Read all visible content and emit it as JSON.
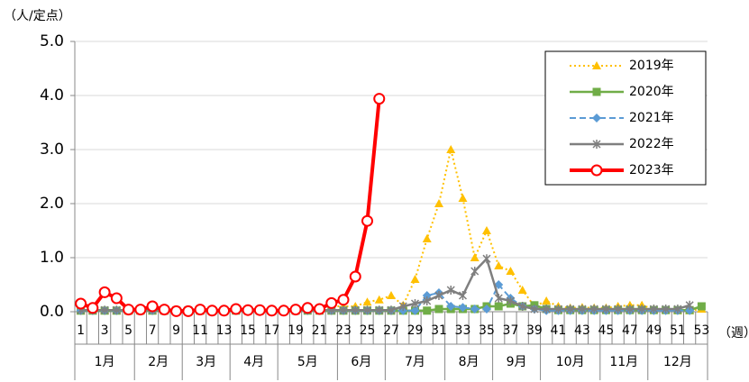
{
  "chart_data": {
    "type": "line",
    "y_unit_label": "（人/定点）",
    "x_unit_label": "（週）",
    "categories": [
      "1",
      null,
      "3",
      null,
      "5",
      null,
      "7",
      null,
      "9",
      null,
      "11",
      null,
      "13",
      null,
      "15",
      null,
      "17",
      null,
      "19",
      null,
      "21",
      null,
      "23",
      null,
      "25",
      null,
      "27",
      null,
      "29",
      null,
      "31",
      null,
      "33",
      null,
      "35",
      null,
      "37",
      null,
      "39",
      null,
      "41",
      null,
      "43",
      null,
      "45",
      null,
      "47",
      null,
      "49",
      null,
      "51",
      null,
      "53"
    ],
    "month_groups": [
      {
        "label": "1月",
        "weeks": 5
      },
      {
        "label": "2月",
        "weeks": 4
      },
      {
        "label": "3月",
        "weeks": 4
      },
      {
        "label": "4月",
        "weeks": 4
      },
      {
        "label": "5月",
        "weeks": 5
      },
      {
        "label": "6月",
        "weeks": 4
      },
      {
        "label": "7月",
        "weeks": 5
      },
      {
        "label": "8月",
        "weeks": 4
      },
      {
        "label": "9月",
        "weeks": 4
      },
      {
        "label": "10月",
        "weeks": 5
      },
      {
        "label": "11月",
        "weeks": 4
      },
      {
        "label": "12月",
        "weeks": 5
      }
    ],
    "ylim": [
      0,
      5
    ],
    "yticks": [
      {
        "value": 0,
        "label": "0.0"
      },
      {
        "value": 1,
        "label": "1.0"
      },
      {
        "value": 2,
        "label": "2.0"
      },
      {
        "value": 3,
        "label": "3.0"
      },
      {
        "value": 4,
        "label": "4.0"
      },
      {
        "value": 5,
        "label": "5.0"
      }
    ],
    "grid": true,
    "legend": "upper right",
    "series": [
      {
        "name": "2019年",
        "color": "#ffc000",
        "marker": "triangle",
        "line_style": "dotted",
        "values": [
          0.02,
          0.02,
          0.02,
          0.02,
          0.02,
          0.02,
          0.02,
          0.02,
          0.02,
          0.02,
          0.02,
          0.02,
          0.03,
          0.03,
          0.03,
          0.03,
          0.03,
          0.05,
          0.05,
          0.07,
          0.08,
          0.1,
          0.1,
          0.1,
          0.18,
          0.22,
          0.3,
          0.12,
          0.6,
          1.35,
          2.0,
          3.0,
          2.1,
          1.0,
          1.5,
          0.85,
          0.75,
          0.4,
          0.1,
          0.2,
          0.1,
          0.07,
          0.08,
          0.07,
          0.07,
          0.1,
          0.12,
          0.12,
          0.05,
          0.03,
          0.02,
          0.02,
          0.05
        ]
      },
      {
        "name": "2020年",
        "color": "#70ad47",
        "marker": "square",
        "line_style": "solid",
        "values": [
          0.02,
          0.02,
          0.02,
          0.02,
          0.02,
          0.02,
          0.02,
          0.02,
          0.02,
          0.02,
          0.02,
          0.02,
          0.02,
          0.02,
          0.02,
          0.02,
          0.02,
          0.02,
          0.02,
          0.02,
          0.02,
          0.02,
          0.02,
          0.02,
          0.02,
          0.02,
          0.02,
          0.02,
          0.02,
          0.02,
          0.05,
          0.05,
          0.05,
          0.05,
          0.1,
          0.1,
          0.15,
          0.1,
          0.12,
          0.05,
          0.03,
          0.03,
          0.03,
          0.03,
          0.03,
          0.03,
          0.03,
          0.03,
          0.03,
          0.03,
          0.03,
          0.03,
          0.1
        ]
      },
      {
        "name": "2021年",
        "color": "#5b9bd5",
        "marker": "diamond",
        "line_style": "dashed",
        "values": [
          0.02,
          0.02,
          0.02,
          0.02,
          0.02,
          0.02,
          0.02,
          0.02,
          0.02,
          0.02,
          0.02,
          0.02,
          0.02,
          0.02,
          0.02,
          0.02,
          0.02,
          0.02,
          0.02,
          0.02,
          0.02,
          0.02,
          0.02,
          0.02,
          0.02,
          0.02,
          0.02,
          0.02,
          0.02,
          0.3,
          0.35,
          0.1,
          0.08,
          0.05,
          0.05,
          0.5,
          0.25,
          0.1,
          0.05,
          0.02,
          0.02,
          0.02,
          0.02,
          0.02,
          0.02,
          0.02,
          0.02,
          0.02,
          0.02,
          0.02,
          0.02,
          0.02,
          null
        ]
      },
      {
        "name": "2022年",
        "color": "#7f7f7f",
        "marker": "star",
        "line_style": "solid",
        "values": [
          0.03,
          0.03,
          0.03,
          0.03,
          0.03,
          0.03,
          0.03,
          0.03,
          0.03,
          0.03,
          0.03,
          0.03,
          0.03,
          0.03,
          0.03,
          0.03,
          0.03,
          0.03,
          0.03,
          0.03,
          0.03,
          0.03,
          0.03,
          0.03,
          0.03,
          0.03,
          0.03,
          0.1,
          0.15,
          0.2,
          0.3,
          0.4,
          0.3,
          0.75,
          0.98,
          0.25,
          0.2,
          0.1,
          0.05,
          0.05,
          0.05,
          0.05,
          0.05,
          0.05,
          0.05,
          0.05,
          0.05,
          0.05,
          0.05,
          0.05,
          0.05,
          0.12,
          null
        ]
      },
      {
        "name": "2023年",
        "color": "#ff0000",
        "marker": "circle",
        "line_style": "thick",
        "values": [
          0.15,
          0.07,
          0.36,
          0.25,
          0.04,
          0.04,
          0.1,
          0.04,
          0.01,
          0.01,
          0.04,
          0.02,
          0.02,
          0.05,
          0.03,
          0.03,
          0.02,
          0.02,
          0.04,
          0.07,
          0.05,
          0.16,
          0.22,
          0.65,
          1.68,
          3.94,
          null,
          null,
          null,
          null,
          null,
          null,
          null,
          null,
          null,
          null,
          null,
          null,
          null,
          null,
          null,
          null,
          null,
          null,
          null,
          null,
          null,
          null,
          null,
          null,
          null,
          null,
          null
        ]
      }
    ]
  }
}
